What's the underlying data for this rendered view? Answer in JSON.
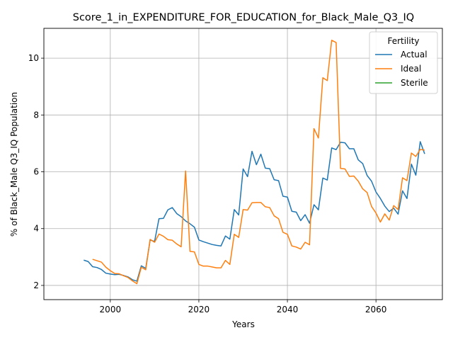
{
  "chart_data": {
    "type": "line",
    "title": "Score_1_in_EXPENDITURE_FOR_EDUCATION_for_Black_Male_Q3_IQ",
    "xlabel": "Years",
    "ylabel": "% of Black_Male Q3_IQ Population",
    "xlim": [
      1985,
      2075
    ],
    "ylim": [
      1.5,
      11.05
    ],
    "xticks": [
      2000,
      2020,
      2040,
      2060
    ],
    "yticks": [
      2,
      4,
      6,
      8,
      10
    ],
    "grid": true,
    "legend": {
      "title": "Fertility",
      "placement": "top-right"
    },
    "series": [
      {
        "name": "Actual",
        "color": "#1f77b4",
        "points": [
          [
            1994,
            2.89
          ],
          [
            1995,
            2.84
          ],
          [
            1996,
            2.66
          ],
          [
            1997,
            2.63
          ],
          [
            1998,
            2.56
          ],
          [
            1999,
            2.43
          ],
          [
            2000,
            2.4
          ],
          [
            2001,
            2.38
          ],
          [
            2002,
            2.39
          ],
          [
            2003,
            2.35
          ],
          [
            2004,
            2.3
          ],
          [
            2005,
            2.2
          ],
          [
            2006,
            2.15
          ],
          [
            2007,
            2.69
          ],
          [
            2008,
            2.6
          ],
          [
            2009,
            3.6
          ],
          [
            2010,
            3.55
          ],
          [
            2011,
            4.35
          ],
          [
            2012,
            4.36
          ],
          [
            2013,
            4.66
          ],
          [
            2014,
            4.74
          ],
          [
            2015,
            4.53
          ],
          [
            2016,
            4.42
          ],
          [
            2017,
            4.27
          ],
          [
            2018,
            4.17
          ],
          [
            2019,
            4.05
          ],
          [
            2020,
            3.6
          ],
          [
            2021,
            3.54
          ],
          [
            2022,
            3.49
          ],
          [
            2023,
            3.44
          ],
          [
            2024,
            3.41
          ],
          [
            2025,
            3.39
          ],
          [
            2026,
            3.74
          ],
          [
            2027,
            3.63
          ],
          [
            2028,
            4.67
          ],
          [
            2029,
            4.48
          ],
          [
            2030,
            6.1
          ],
          [
            2031,
            5.83
          ],
          [
            2032,
            6.72
          ],
          [
            2033,
            6.25
          ],
          [
            2034,
            6.62
          ],
          [
            2035,
            6.13
          ],
          [
            2036,
            6.11
          ],
          [
            2037,
            5.72
          ],
          [
            2038,
            5.69
          ],
          [
            2039,
            5.14
          ],
          [
            2040,
            5.11
          ],
          [
            2041,
            4.61
          ],
          [
            2042,
            4.58
          ],
          [
            2043,
            4.28
          ],
          [
            2044,
            4.49
          ],
          [
            2045,
            4.19
          ],
          [
            2046,
            4.84
          ],
          [
            2047,
            4.66
          ],
          [
            2048,
            5.78
          ],
          [
            2049,
            5.71
          ],
          [
            2050,
            6.84
          ],
          [
            2051,
            6.78
          ],
          [
            2052,
            7.04
          ],
          [
            2053,
            7.02
          ],
          [
            2054,
            6.81
          ],
          [
            2055,
            6.81
          ],
          [
            2056,
            6.42
          ],
          [
            2057,
            6.29
          ],
          [
            2058,
            5.87
          ],
          [
            2059,
            5.67
          ],
          [
            2060,
            5.29
          ],
          [
            2061,
            5.06
          ],
          [
            2062,
            4.79
          ],
          [
            2063,
            4.6
          ],
          [
            2064,
            4.72
          ],
          [
            2065,
            4.51
          ],
          [
            2066,
            5.33
          ],
          [
            2067,
            5.06
          ],
          [
            2068,
            6.27
          ],
          [
            2069,
            5.88
          ],
          [
            2070,
            7.06
          ],
          [
            2071,
            6.63
          ]
        ]
      },
      {
        "name": "Ideal",
        "color": "#ff7f0e",
        "points": [
          [
            1996,
            2.92
          ],
          [
            1997,
            2.87
          ],
          [
            1998,
            2.82
          ],
          [
            1999,
            2.64
          ],
          [
            2000,
            2.52
          ],
          [
            2001,
            2.42
          ],
          [
            2002,
            2.41
          ],
          [
            2003,
            2.34
          ],
          [
            2004,
            2.28
          ],
          [
            2005,
            2.16
          ],
          [
            2006,
            2.06
          ],
          [
            2007,
            2.64
          ],
          [
            2008,
            2.55
          ],
          [
            2009,
            3.62
          ],
          [
            2010,
            3.52
          ],
          [
            2011,
            3.81
          ],
          [
            2012,
            3.73
          ],
          [
            2013,
            3.61
          ],
          [
            2014,
            3.59
          ],
          [
            2015,
            3.46
          ],
          [
            2016,
            3.36
          ],
          [
            2017,
            6.03
          ],
          [
            2018,
            3.2
          ],
          [
            2019,
            3.18
          ],
          [
            2020,
            2.74
          ],
          [
            2021,
            2.68
          ],
          [
            2022,
            2.68
          ],
          [
            2023,
            2.65
          ],
          [
            2024,
            2.62
          ],
          [
            2025,
            2.62
          ],
          [
            2026,
            2.88
          ],
          [
            2027,
            2.74
          ],
          [
            2028,
            3.8
          ],
          [
            2029,
            3.69
          ],
          [
            2030,
            4.67
          ],
          [
            2031,
            4.65
          ],
          [
            2032,
            4.91
          ],
          [
            2033,
            4.92
          ],
          [
            2034,
            4.92
          ],
          [
            2035,
            4.77
          ],
          [
            2036,
            4.74
          ],
          [
            2037,
            4.45
          ],
          [
            2038,
            4.35
          ],
          [
            2039,
            3.87
          ],
          [
            2040,
            3.8
          ],
          [
            2041,
            3.39
          ],
          [
            2042,
            3.35
          ],
          [
            2043,
            3.28
          ],
          [
            2044,
            3.52
          ],
          [
            2045,
            3.43
          ],
          [
            2046,
            7.52
          ],
          [
            2047,
            7.19
          ],
          [
            2048,
            9.31
          ],
          [
            2049,
            9.21
          ],
          [
            2050,
            10.63
          ],
          [
            2051,
            10.55
          ],
          [
            2052,
            6.12
          ],
          [
            2053,
            6.1
          ],
          [
            2054,
            5.84
          ],
          [
            2055,
            5.85
          ],
          [
            2056,
            5.67
          ],
          [
            2057,
            5.4
          ],
          [
            2058,
            5.27
          ],
          [
            2059,
            4.78
          ],
          [
            2060,
            4.55
          ],
          [
            2061,
            4.23
          ],
          [
            2062,
            4.52
          ],
          [
            2063,
            4.3
          ],
          [
            2064,
            4.81
          ],
          [
            2065,
            4.67
          ],
          [
            2066,
            5.79
          ],
          [
            2067,
            5.69
          ],
          [
            2068,
            6.66
          ],
          [
            2069,
            6.54
          ],
          [
            2070,
            6.79
          ],
          [
            2071,
            6.76
          ]
        ]
      },
      {
        "name": "Sterile",
        "color": "#2ca02c",
        "points": []
      }
    ]
  }
}
